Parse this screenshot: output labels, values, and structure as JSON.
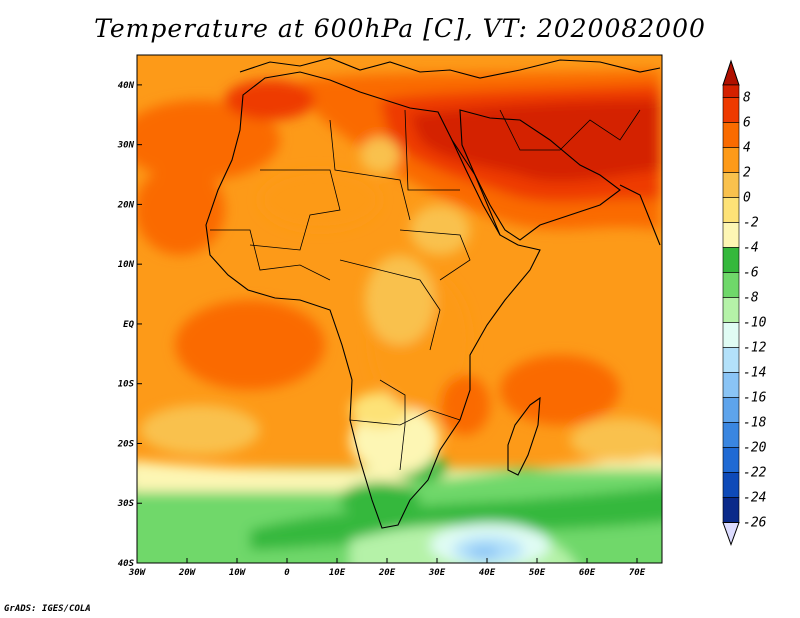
{
  "title": "Temperature at 600hPa [C], VT: 2020082000",
  "footer": "GrADS: IGES/COLA",
  "colors": {
    "t8": "#d42000",
    "t6": "#ee3a00",
    "t4": "#fa6b00",
    "t2": "#fd9a18",
    "t0": "#f9c14d",
    "tm2": "#fde277",
    "tm4": "#fdf6b4",
    "tm6": "#35b83c",
    "tm8": "#6fd86a",
    "tm10": "#b5f2a8",
    "tm12": "#e0fcf4",
    "tm14": "#b3e1fa",
    "tm16": "#8ac4f5",
    "tm18": "#5ea4ec",
    "tm20": "#3a86e0",
    "tm22": "#1f6ad4",
    "tm24": "#0e4ab8",
    "tm26": "#0a2a8a",
    "border": "#000000"
  },
  "map": {
    "lon_range": [
      -30,
      75
    ],
    "lat_range": [
      -40,
      45
    ],
    "x_ticks": [
      "30W",
      "20W",
      "10W",
      "0",
      "10E",
      "20E",
      "30E",
      "40E",
      "50E",
      "60E",
      "70E"
    ],
    "y_ticks": [
      "40N",
      "30N",
      "20N",
      "10N",
      "EQ",
      "10S",
      "20S",
      "30S",
      "40S"
    ]
  },
  "colorbar": {
    "labels": [
      "8",
      "6",
      "4",
      "2",
      "0",
      "-2",
      "-4",
      "-6",
      "-8",
      "-10",
      "-12",
      "-14",
      "-16",
      "-18",
      "-20",
      "-22",
      "-24",
      "-26"
    ]
  }
}
